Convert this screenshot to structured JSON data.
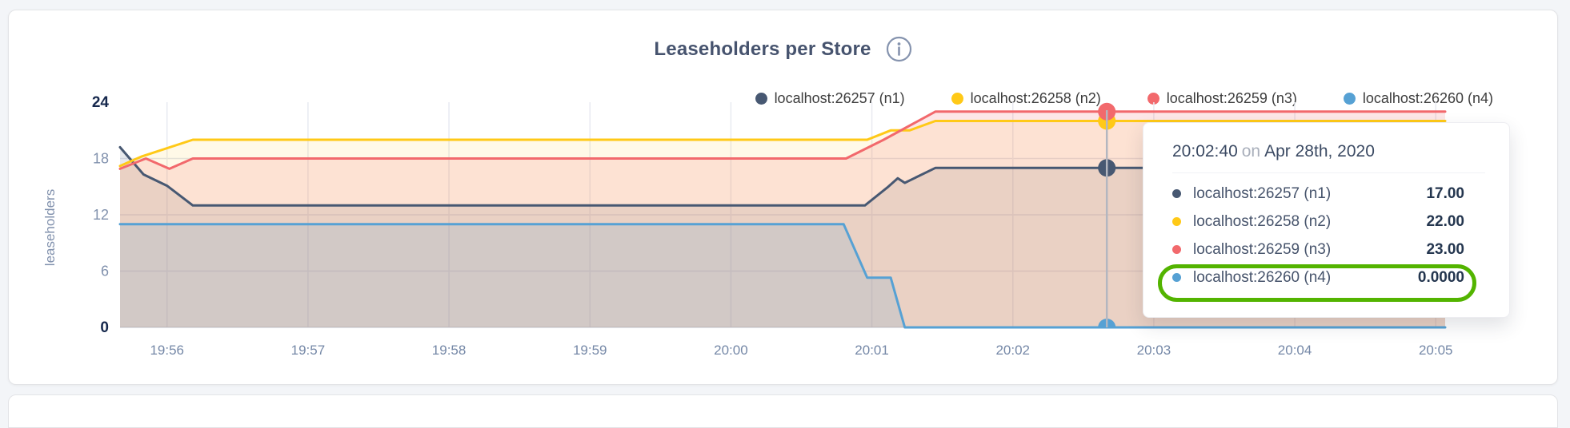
{
  "header": {
    "title": "Leaseholders per Store"
  },
  "legend": {
    "items": [
      {
        "label": "localhost:26257 (n1)"
      },
      {
        "label": "localhost:26258 (n2)"
      },
      {
        "label": "localhost:26259 (n3)"
      },
      {
        "label": "localhost:26260 (n4)"
      }
    ]
  },
  "chart_data": {
    "type": "area",
    "title": "Leaseholders per Store",
    "xlabel": "",
    "ylabel": "leaseholders",
    "ylim": [
      0,
      24
    ],
    "grid_y": [
      6,
      12,
      18
    ],
    "t_max": 564,
    "time_base": "19:55:40",
    "x_ticks": [
      {
        "t": 20,
        "label": "19:56"
      },
      {
        "t": 80,
        "label": "19:57"
      },
      {
        "t": 140,
        "label": "19:58"
      },
      {
        "t": 200,
        "label": "19:59"
      },
      {
        "t": 260,
        "label": "20:00"
      },
      {
        "t": 320,
        "label": "20:01"
      },
      {
        "t": 380,
        "label": "20:02"
      },
      {
        "t": 440,
        "label": "20:03"
      },
      {
        "t": 500,
        "label": "20:04"
      },
      {
        "t": 560,
        "label": "20:05"
      }
    ],
    "y_ticks": [
      {
        "v": 0,
        "label": "0",
        "bold": true
      },
      {
        "v": 6,
        "label": "6"
      },
      {
        "v": 12,
        "label": "12"
      },
      {
        "v": 18,
        "label": "18"
      },
      {
        "v": 24,
        "label": "24",
        "bold": true
      }
    ],
    "series": [
      {
        "name": "localhost:26257 (n1)",
        "color": "#475872",
        "fill": "rgba(71,88,114,0.13)",
        "points": [
          [
            0,
            19.2
          ],
          [
            10,
            16.3
          ],
          [
            20,
            15.1
          ],
          [
            31,
            13
          ],
          [
            317,
            13
          ],
          [
            327,
            15
          ],
          [
            331,
            15.9
          ],
          [
            334,
            15.4
          ],
          [
            347,
            17
          ],
          [
            564,
            17
          ]
        ]
      },
      {
        "name": "localhost:26258 (n2)",
        "color": "#ffc917",
        "fill": "rgba(255,201,23,0.10)",
        "points": [
          [
            0,
            17.2
          ],
          [
            9,
            18.2
          ],
          [
            31,
            20
          ],
          [
            318,
            20
          ],
          [
            328,
            21
          ],
          [
            336,
            21
          ],
          [
            347,
            22
          ],
          [
            564,
            22
          ]
        ]
      },
      {
        "name": "localhost:26259 (n3)",
        "color": "#f2696c",
        "fill": "rgba(242,105,108,0.16)",
        "points": [
          [
            0,
            16.9
          ],
          [
            11,
            18
          ],
          [
            21,
            16.9
          ],
          [
            31,
            18
          ],
          [
            309,
            18
          ],
          [
            325,
            20
          ],
          [
            347,
            23
          ],
          [
            564,
            23
          ]
        ]
      },
      {
        "name": "localhost:26260 (n4)",
        "color": "#56a1d4",
        "fill": "rgba(86,161,212,0.16)",
        "points": [
          [
            0,
            11
          ],
          [
            308,
            11
          ],
          [
            318,
            5.3
          ],
          [
            328,
            5.3
          ],
          [
            334,
            0
          ],
          [
            564,
            0
          ]
        ]
      }
    ],
    "hover": {
      "t": 420,
      "time_label": "20:02:40",
      "values": [
        17,
        22,
        23,
        0
      ]
    }
  },
  "tooltip": {
    "time": "20:02:40",
    "on": "on",
    "date": "Apr 28th, 2020",
    "rows": [
      {
        "label": "localhost:26257 (n1)",
        "value": "17.00"
      },
      {
        "label": "localhost:26258 (n2)",
        "value": "22.00"
      },
      {
        "label": "localhost:26259 (n3)",
        "value": "23.00"
      },
      {
        "label": "localhost:26260 (n4)",
        "value": "0.0000"
      }
    ],
    "highlight_row_index": 3,
    "highlight_color": "#53b400"
  }
}
